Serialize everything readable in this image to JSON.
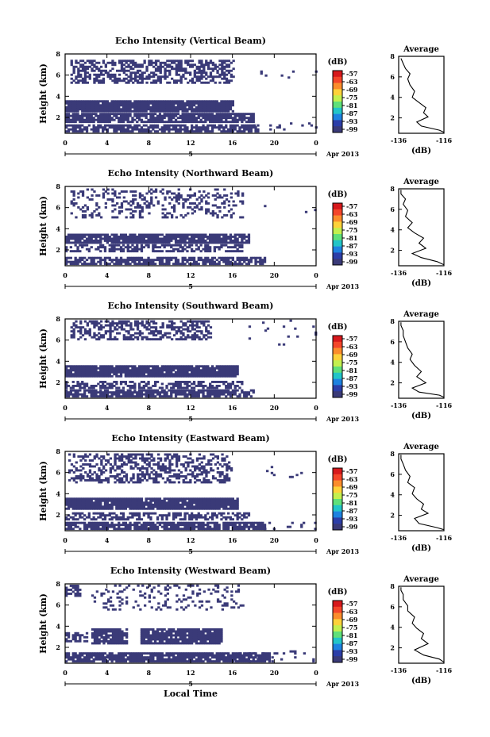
{
  "figure": {
    "xlabel": "Local Time"
  },
  "colorbar": {
    "unit": "(dB)",
    "ticks": [
      "-57",
      "-63",
      "-69",
      "-75",
      "-81",
      "-87",
      "-93",
      "-99"
    ],
    "colors": [
      "#d7191c",
      "#f4462a",
      "#fb8d2c",
      "#fdd23a",
      "#c3f04f",
      "#5fe07a",
      "#22c5c8",
      "#1e82e0",
      "#2c3ea8",
      "#3a3a78"
    ]
  },
  "chart_data": [
    {
      "type": "heatmap",
      "title": "Echo Intensity (Vertical Beam)",
      "xlabel": "",
      "ylabel": "Height (km)",
      "x_ticks": [
        "0",
        "4",
        "8",
        "12",
        "16",
        "20",
        "0"
      ],
      "y_ticks": [
        "2",
        "4",
        "6",
        "8"
      ],
      "date_tick": "5",
      "date_label": "Apr 2013",
      "xlim": [
        0,
        24
      ],
      "ylim": [
        0.5,
        8
      ],
      "bands": [
        {
          "t0": 0,
          "t1": 16,
          "h0": 2.5,
          "h1": 3.6,
          "density": 0.96
        },
        {
          "t0": 0,
          "t1": 18,
          "h0": 1.5,
          "h1": 2.3,
          "density": 0.85
        },
        {
          "t0": 0,
          "t1": 18.5,
          "h0": 0.6,
          "h1": 1.2,
          "density": 0.75
        },
        {
          "t0": 0.5,
          "t1": 16,
          "h0": 5.2,
          "h1": 7.4,
          "density": 0.55
        },
        {
          "t0": 18,
          "t1": 24,
          "h0": 5.5,
          "h1": 6.3,
          "density": 0.05
        },
        {
          "t0": 18,
          "t1": 24,
          "h0": 0.6,
          "h1": 1.4,
          "density": 0.07
        }
      ],
      "profile": {
        "title": "Average",
        "xlabel": "(dB)",
        "xlim": [
          -136,
          -116
        ],
        "x_ticks": [
          "-136",
          "-116"
        ],
        "y_ticks": [
          "2",
          "4",
          "6",
          "8"
        ],
        "ylim": [
          0.5,
          8
        ],
        "points": [
          [
            -116,
            0.6
          ],
          [
            -118,
            0.8
          ],
          [
            -126,
            1.2
          ],
          [
            -128,
            1.6
          ],
          [
            -123,
            2.1
          ],
          [
            -125,
            2.5
          ],
          [
            -124,
            3.0
          ],
          [
            -127,
            3.5
          ],
          [
            -130,
            4.0
          ],
          [
            -129,
            4.6
          ],
          [
            -131,
            5.2
          ],
          [
            -132,
            5.8
          ],
          [
            -131,
            6.3
          ],
          [
            -133,
            6.8
          ],
          [
            -134,
            7.3
          ],
          [
            -135,
            7.8
          ]
        ]
      }
    },
    {
      "type": "heatmap",
      "title": "Echo Intensity (Northward Beam)",
      "xlabel": "",
      "ylabel": "Height (km)",
      "x_ticks": [
        "0",
        "4",
        "8",
        "12",
        "16",
        "20",
        "0"
      ],
      "y_ticks": [
        "2",
        "4",
        "6",
        "8"
      ],
      "date_tick": "5",
      "date_label": "Apr 2013",
      "xlim": [
        0,
        24
      ],
      "ylim": [
        0.5,
        8
      ],
      "bands": [
        {
          "t0": 0,
          "t1": 17.5,
          "h0": 2.6,
          "h1": 3.5,
          "density": 0.92
        },
        {
          "t0": 0,
          "t1": 17,
          "h0": 1.8,
          "h1": 2.4,
          "density": 0.55
        },
        {
          "t0": 0,
          "t1": 19,
          "h0": 0.6,
          "h1": 1.3,
          "density": 0.75
        },
        {
          "t0": 0.5,
          "t1": 17,
          "h0": 5.0,
          "h1": 7.8,
          "density": 0.25
        },
        {
          "t0": 19,
          "t1": 24,
          "h0": 5.5,
          "h1": 6.2,
          "density": 0.04
        }
      ],
      "profile": {
        "title": "Average",
        "xlabel": "(dB)",
        "xlim": [
          -136,
          -116
        ],
        "x_ticks": [
          "-136",
          "-116"
        ],
        "y_ticks": [
          "2",
          "4",
          "6",
          "8"
        ],
        "ylim": [
          0.5,
          8
        ],
        "points": [
          [
            -116,
            0.6
          ],
          [
            -119,
            0.9
          ],
          [
            -126,
            1.3
          ],
          [
            -130,
            1.7
          ],
          [
            -124,
            2.2
          ],
          [
            -127,
            2.7
          ],
          [
            -125,
            3.2
          ],
          [
            -129,
            3.7
          ],
          [
            -132,
            4.2
          ],
          [
            -130,
            4.7
          ],
          [
            -133,
            5.3
          ],
          [
            -132,
            5.9
          ],
          [
            -134,
            6.5
          ],
          [
            -133,
            7.0
          ],
          [
            -135,
            7.5
          ],
          [
            -135,
            7.9
          ]
        ]
      }
    },
    {
      "type": "heatmap",
      "title": "Echo Intensity (Southward Beam)",
      "xlabel": "",
      "ylabel": "Height (km)",
      "x_ticks": [
        "0",
        "4",
        "8",
        "12",
        "16",
        "20",
        "0"
      ],
      "y_ticks": [
        "2",
        "4",
        "6",
        "8"
      ],
      "date_tick": "5",
      "date_label": "Apr 2013",
      "xlim": [
        0,
        24
      ],
      "ylim": [
        0.5,
        8
      ],
      "bands": [
        {
          "t0": 0,
          "t1": 16.5,
          "h0": 2.5,
          "h1": 3.5,
          "density": 0.95
        },
        {
          "t0": 0,
          "t1": 17,
          "h0": 1.4,
          "h1": 2.0,
          "density": 0.6
        },
        {
          "t0": 0,
          "t1": 18,
          "h0": 0.6,
          "h1": 1.3,
          "density": 0.8
        },
        {
          "t0": 0.5,
          "t1": 14,
          "h0": 6.0,
          "h1": 7.8,
          "density": 0.5
        },
        {
          "t0": 16,
          "t1": 24,
          "h0": 5.5,
          "h1": 7.8,
          "density": 0.03
        }
      ],
      "profile": {
        "title": "Average",
        "xlabel": "(dB)",
        "xlim": [
          -136,
          -116
        ],
        "x_ticks": [
          "-136",
          "-116"
        ],
        "y_ticks": [
          "2",
          "4",
          "6",
          "8"
        ],
        "ylim": [
          0.5,
          8
        ],
        "points": [
          [
            -116,
            0.6
          ],
          [
            -118,
            0.8
          ],
          [
            -127,
            1.1
          ],
          [
            -130,
            1.5
          ],
          [
            -124,
            2.0
          ],
          [
            -128,
            2.6
          ],
          [
            -126,
            3.1
          ],
          [
            -129,
            3.7
          ],
          [
            -131,
            4.3
          ],
          [
            -130,
            4.8
          ],
          [
            -132,
            5.4
          ],
          [
            -133,
            6.0
          ],
          [
            -134,
            6.6
          ],
          [
            -134,
            7.1
          ],
          [
            -135,
            7.6
          ],
          [
            -135,
            7.9
          ]
        ]
      }
    },
    {
      "type": "heatmap",
      "title": "Echo Intensity (Eastward Beam)",
      "xlabel": "",
      "ylabel": "Height (km)",
      "x_ticks": [
        "0",
        "4",
        "8",
        "12",
        "16",
        "20",
        "0"
      ],
      "y_ticks": [
        "2",
        "4",
        "6",
        "8"
      ],
      "date_tick": "5",
      "date_label": "Apr 2013",
      "xlim": [
        0,
        24
      ],
      "ylim": [
        0.5,
        8
      ],
      "bands": [
        {
          "t0": 0,
          "t1": 16.5,
          "h0": 2.5,
          "h1": 3.5,
          "density": 0.95
        },
        {
          "t0": 0,
          "t1": 17.5,
          "h0": 1.5,
          "h1": 2.2,
          "density": 0.6
        },
        {
          "t0": 0,
          "t1": 19,
          "h0": 0.6,
          "h1": 1.3,
          "density": 0.85
        },
        {
          "t0": 0.3,
          "t1": 16,
          "h0": 5.0,
          "h1": 7.8,
          "density": 0.45
        },
        {
          "t0": 19,
          "t1": 24,
          "h0": 0.6,
          "h1": 1.2,
          "density": 0.08
        },
        {
          "t0": 19,
          "t1": 24,
          "h0": 5.5,
          "h1": 6.5,
          "density": 0.04
        }
      ],
      "profile": {
        "title": "Average",
        "xlabel": "(dB)",
        "xlim": [
          -136,
          -116
        ],
        "x_ticks": [
          "-136",
          "-116"
        ],
        "y_ticks": [
          "2",
          "4",
          "6",
          "8"
        ],
        "ylim": [
          0.5,
          8
        ],
        "points": [
          [
            -116,
            0.6
          ],
          [
            -119,
            0.8
          ],
          [
            -127,
            1.2
          ],
          [
            -129,
            1.7
          ],
          [
            -123,
            2.2
          ],
          [
            -126,
            2.6
          ],
          [
            -125,
            3.1
          ],
          [
            -128,
            3.6
          ],
          [
            -130,
            4.1
          ],
          [
            -129,
            4.7
          ],
          [
            -132,
            5.2
          ],
          [
            -131,
            5.8
          ],
          [
            -133,
            6.4
          ],
          [
            -134,
            7.0
          ],
          [
            -135,
            7.5
          ],
          [
            -135,
            7.9
          ]
        ]
      }
    },
    {
      "type": "heatmap",
      "title": "Echo Intensity (Westward Beam)",
      "xlabel": "",
      "ylabel": "Height (km)",
      "x_ticks": [
        "0",
        "4",
        "8",
        "12",
        "16",
        "20",
        "0"
      ],
      "y_ticks": [
        "2",
        "4",
        "6",
        "8"
      ],
      "date_tick": "5",
      "date_label": "Apr 2013",
      "xlim": [
        0,
        24
      ],
      "ylim": [
        0.5,
        8
      ],
      "bands": [
        {
          "t0": 2.5,
          "t1": 5.8,
          "h0": 2.3,
          "h1": 3.8,
          "density": 0.9
        },
        {
          "t0": 7.2,
          "t1": 15,
          "h0": 2.3,
          "h1": 3.8,
          "density": 0.9
        },
        {
          "t0": 0,
          "t1": 2,
          "h0": 2.5,
          "h1": 3.4,
          "density": 0.6
        },
        {
          "t0": 0,
          "t1": 19.5,
          "h0": 0.6,
          "h1": 1.4,
          "density": 0.85
        },
        {
          "t0": 0,
          "t1": 1.5,
          "h0": 6.8,
          "h1": 7.8,
          "density": 0.6
        },
        {
          "t0": 2.5,
          "t1": 17,
          "h0": 5.5,
          "h1": 7.8,
          "density": 0.2
        },
        {
          "t0": 16,
          "t1": 24,
          "h0": 0.6,
          "h1": 1.6,
          "density": 0.06
        }
      ],
      "profile": {
        "title": "Average",
        "xlabel": "(dB)",
        "xlim": [
          -136,
          -116
        ],
        "x_ticks": [
          "-136",
          "-116"
        ],
        "y_ticks": [
          "2",
          "4",
          "6",
          "8"
        ],
        "ylim": [
          0.5,
          8
        ],
        "points": [
          [
            -116,
            0.6
          ],
          [
            -118,
            0.9
          ],
          [
            -125,
            1.3
          ],
          [
            -129,
            1.8
          ],
          [
            -123,
            2.4
          ],
          [
            -126,
            2.9
          ],
          [
            -125,
            3.4
          ],
          [
            -128,
            3.9
          ],
          [
            -130,
            4.4
          ],
          [
            -129,
            5.0
          ],
          [
            -132,
            5.6
          ],
          [
            -132,
            6.1
          ],
          [
            -134,
            6.7
          ],
          [
            -134,
            7.2
          ],
          [
            -135,
            7.6
          ],
          [
            -135,
            7.9
          ]
        ]
      }
    }
  ]
}
